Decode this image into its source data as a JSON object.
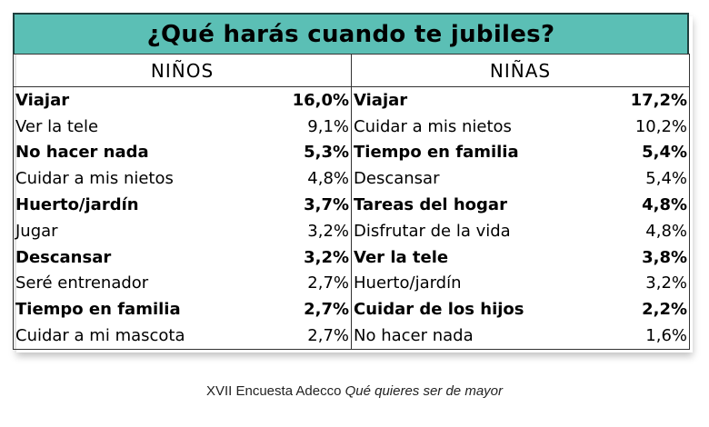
{
  "chart_data": {
    "type": "table",
    "title": "¿Qué harás cuando te jubiles?",
    "columns": [
      "NIÑOS",
      "NIÑAS"
    ],
    "ninos": [
      {
        "label": "Viajar",
        "value": "16,0%",
        "bold": true
      },
      {
        "label": "Ver la tele",
        "value": "9,1%",
        "bold": false
      },
      {
        "label": "No hacer nada",
        "value": "5,3%",
        "bold": true
      },
      {
        "label": "Cuidar a mis nietos",
        "value": "4,8%",
        "bold": false
      },
      {
        "label": "Huerto/jardín",
        "value": "3,7%",
        "bold": true
      },
      {
        "label": "Jugar",
        "value": "3,2%",
        "bold": false
      },
      {
        "label": "Descansar",
        "value": "3,2%",
        "bold": true
      },
      {
        "label": "Seré entrenador",
        "value": "2,7%",
        "bold": false
      },
      {
        "label": "Tiempo en familia",
        "value": "2,7%",
        "bold": true
      },
      {
        "label": "Cuidar a mi mascota",
        "value": "2,7%",
        "bold": false
      }
    ],
    "ninas": [
      {
        "label": "Viajar",
        "value": "17,2%",
        "bold": true
      },
      {
        "label": "Cuidar a mis nietos",
        "value": "10,2%",
        "bold": false
      },
      {
        "label": "Tiempo en familia",
        "value": "5,4%",
        "bold": true
      },
      {
        "label": "Descansar",
        "value": "5,4%",
        "bold": false
      },
      {
        "label": "Tareas del hogar",
        "value": "4,8%",
        "bold": true
      },
      {
        "label": "Disfrutar de la vida",
        "value": "4,8%",
        "bold": false
      },
      {
        "label": "Ver la tele",
        "value": "3,8%",
        "bold": true
      },
      {
        "label": "Huerto/jardín",
        "value": "3,2%",
        "bold": false
      },
      {
        "label": "Cuidar de los hijos",
        "value": "2,2%",
        "bold": true
      },
      {
        "label": "No hacer nada",
        "value": "1,6%",
        "bold": false
      }
    ]
  },
  "caption": {
    "prefix": "XVII Encuesta Adecco ",
    "italic": "Qué quieres ser de mayor"
  },
  "colors": {
    "title_bg": "#5bbfb5"
  }
}
